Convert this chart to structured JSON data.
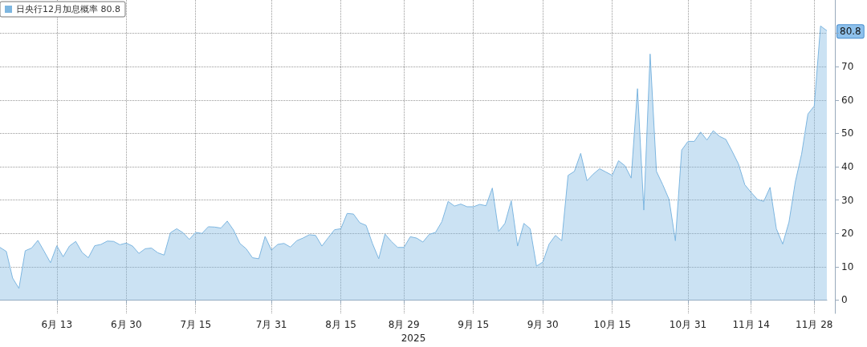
{
  "chart_data": {
    "type": "area",
    "xlabel": "2025",
    "categories": [
      null,
      null,
      null,
      null,
      null,
      null,
      null,
      null,
      null,
      "6月 13",
      null,
      null,
      null,
      null,
      null,
      null,
      null,
      null,
      null,
      null,
      "6月 30",
      null,
      null,
      null,
      null,
      null,
      null,
      null,
      null,
      null,
      null,
      "7月 15",
      null,
      null,
      null,
      null,
      null,
      null,
      null,
      null,
      null,
      null,
      null,
      "7月 31",
      null,
      null,
      null,
      null,
      null,
      null,
      null,
      null,
      null,
      null,
      "8月 15",
      null,
      null,
      null,
      null,
      null,
      null,
      null,
      null,
      null,
      "8月 29",
      null,
      null,
      null,
      null,
      null,
      null,
      null,
      null,
      null,
      null,
      "9月 15",
      null,
      null,
      null,
      null,
      null,
      null,
      null,
      null,
      null,
      null,
      "9月 30",
      null,
      null,
      null,
      null,
      null,
      null,
      null,
      null,
      null,
      null,
      "10月 15",
      null,
      null,
      null,
      null,
      null,
      null,
      null,
      null,
      null,
      null,
      null,
      "10月 31",
      null,
      null,
      null,
      null,
      null,
      null,
      null,
      null,
      null,
      "11月 14",
      null,
      null,
      null,
      null,
      null,
      null,
      null,
      null,
      null,
      "11月 28",
      null,
      null
    ],
    "series": [
      {
        "name": "日央行12月加息概率 80.8",
        "color": "#7db6e0",
        "values": [
          15.8,
          14.6,
          6.6,
          3.5,
          14.8,
          15.6,
          17.9,
          14.6,
          11.2,
          16.3,
          13,
          16.2,
          17.6,
          14.3,
          12.7,
          16.3,
          16.7,
          17.7,
          17.6,
          16.6,
          17.1,
          16.2,
          14,
          15.4,
          15.6,
          14.2,
          13.5,
          20.2,
          21.4,
          20.2,
          18.2,
          20.3,
          20,
          22,
          21.9,
          21.6,
          23.7,
          21,
          17,
          15.4,
          12.7,
          12.4,
          19.1,
          15,
          16.7,
          17,
          15.9,
          17.8,
          18.6,
          19.6,
          19.4,
          16.2,
          18.7,
          21.1,
          21.4,
          26,
          25.8,
          23.2,
          22.4,
          17,
          12.4,
          19.8,
          17.6,
          15.8,
          15.8,
          19,
          18.6,
          17.4,
          19.7,
          20.3,
          23.5,
          29.6,
          28.2,
          28.8,
          28,
          28,
          28.7,
          28.3,
          33.6,
          20.6,
          23,
          29.8,
          16.2,
          23,
          21.4,
          10.2,
          11.4,
          16.8,
          19.4,
          17.8,
          37.4,
          38.6,
          44,
          35.8,
          37.8,
          39.4,
          38.4,
          37.4,
          41.8,
          40.3,
          36.6,
          63.4,
          27,
          73.8,
          38.6,
          34.6,
          30.2,
          17.8,
          45,
          47.6,
          47.6,
          50.4,
          48,
          50.8,
          49.1,
          48.2,
          44.6,
          40.8,
          34.6,
          32.3,
          30.2,
          29.6,
          33.8,
          21.4,
          16.8,
          23.4,
          35.4,
          43.8,
          55.8,
          58.2,
          82.2,
          80.8
        ]
      }
    ],
    "ylim": [
      -4,
      90
    ],
    "yticks": [
      0,
      10,
      20,
      30,
      40,
      50,
      60,
      70,
      {
        "value": 80,
        "label": null
      }
    ],
    "grid": true,
    "legend": "top left",
    "marker": "none",
    "line_style": "solid",
    "annotations": [
      "80.8"
    ]
  }
}
